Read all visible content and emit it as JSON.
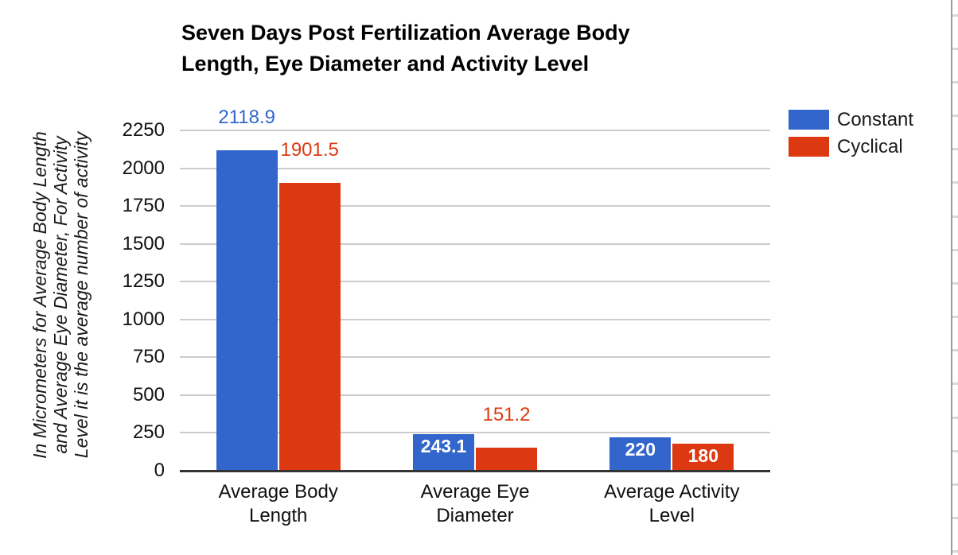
{
  "chart_data": {
    "type": "bar",
    "title": "Seven Days Post Fertilization Average Body Length, Eye Diameter and Activity Level",
    "title_lines": [
      "Seven Days Post Fertilization Average Body",
      "Length, Eye Diameter and Activity Level"
    ],
    "categories": [
      "Average Body Length",
      "Average Eye Diameter",
      "Average Activity Level"
    ],
    "category_lines": [
      [
        "Average Body",
        "Length"
      ],
      [
        "Average Eye",
        "Diameter"
      ],
      [
        "Average Activity",
        "Level"
      ]
    ],
    "series": [
      {
        "name": "Constant",
        "color": "#3366CC",
        "values": [
          2118.9,
          243.1,
          220
        ],
        "data_labels": [
          "2118.9",
          "243.1",
          "220"
        ],
        "label_placement": [
          "above",
          "inside",
          "inside"
        ]
      },
      {
        "name": "Cyclical",
        "color": "#DC3912",
        "values": [
          1901.5,
          151.2,
          180
        ],
        "data_labels": [
          "1901.5",
          "151.2",
          "180"
        ],
        "label_placement": [
          "above",
          "above",
          "inside"
        ]
      }
    ],
    "xlabel": "",
    "ylabel": "In Micrometers for Average Body Length and Average Eye Diameter, For Activity Level it is the average number of activity",
    "ylabel_lines": [
      "In Micrometers for Average Body Length",
      "and Average Eye Diameter, For Activity",
      "Level it is the average number of activity"
    ],
    "ylim": [
      0,
      2250
    ],
    "yticks": [
      0,
      250,
      500,
      750,
      1000,
      1250,
      1500,
      1750,
      2000,
      2250
    ],
    "grid": true,
    "legend_position": "right",
    "colors": {
      "grid": "#CCCCCC",
      "baseline": "#333333",
      "axis_text": "#111111",
      "title_text": "#000000",
      "inside_label_text": "#FFFFFF"
    }
  }
}
